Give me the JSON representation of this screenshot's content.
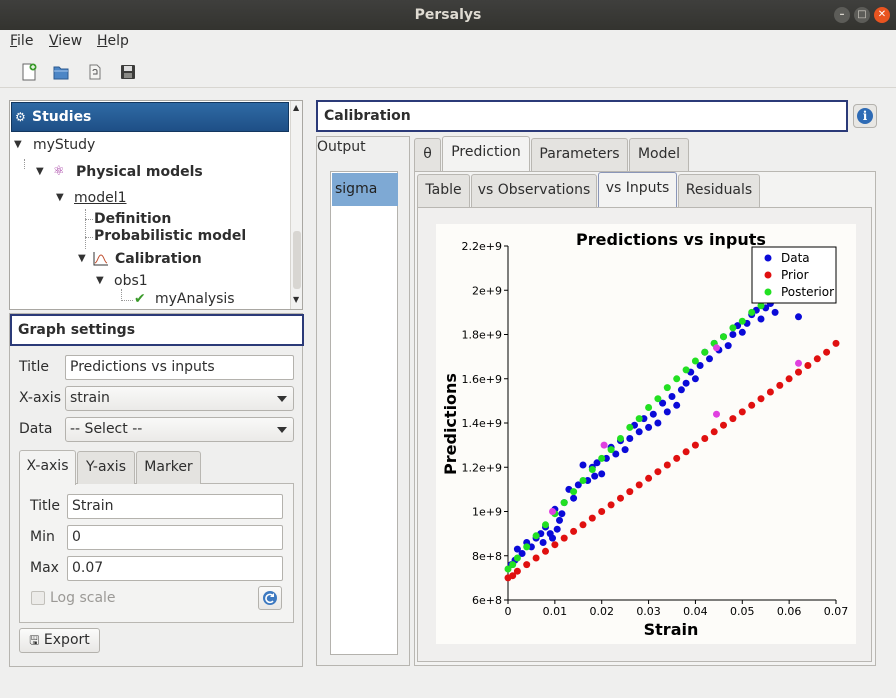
{
  "window": {
    "title": "Persalys",
    "controls": [
      "minimize-icon",
      "maximize-icon",
      "close-icon"
    ]
  },
  "menu": {
    "items": [
      {
        "mnemonic": "F",
        "rest": "ile"
      },
      {
        "mnemonic": "V",
        "rest": "iew"
      },
      {
        "mnemonic": "H",
        "rest": "elp"
      }
    ]
  },
  "toolbar": {
    "icons": [
      "new-study-icon",
      "open-study-icon",
      "import-python-icon",
      "save-icon"
    ]
  },
  "studies": {
    "header": "Studies",
    "tree": [
      {
        "label": "myStudy"
      },
      {
        "label": "Physical models",
        "icon": "physical-models-icon"
      },
      {
        "label": "model1"
      },
      {
        "label": "Definition"
      },
      {
        "label": "Probabilistic model"
      },
      {
        "label": "Calibration",
        "icon": "calibration-icon"
      },
      {
        "label": "obs1"
      },
      {
        "label": "myAnalysis",
        "icon": "checkmark-icon"
      }
    ]
  },
  "graph_settings": {
    "header": "Graph settings",
    "title_label": "Title",
    "title_value": "Predictions vs inputs",
    "xaxis_label": "X-axis",
    "xaxis_value": "strain",
    "data_label": "Data",
    "data_value": "-- Select --",
    "tabs": [
      "X-axis",
      "Y-axis",
      "Marker"
    ],
    "axis_title_label": "Title",
    "axis_title_value": "Strain",
    "min_label": "Min",
    "min_value": "0",
    "max_label": "Max",
    "max_value": "0.07",
    "log_scale": "Log scale",
    "export": "Export"
  },
  "calibration": {
    "header": "Calibration",
    "output_label": "Output",
    "outputs": [
      "sigma"
    ],
    "tabs": [
      "θ",
      "Prediction",
      "Parameters",
      "Model"
    ],
    "subtabs": [
      "Table",
      "vs Observations",
      "vs Inputs",
      "Residuals"
    ]
  },
  "chart_data": {
    "type": "scatter",
    "title": "Predictions vs inputs",
    "xlabel": "Strain",
    "ylabel": "Predictions",
    "xlim": [
      0,
      0.07
    ],
    "ylim": [
      600000000,
      2200000000
    ],
    "xticks": [
      "0",
      "0.01",
      "0.02",
      "0.03",
      "0.04",
      "0.05",
      "0.06",
      "0.07"
    ],
    "yticks": [
      "6e+8",
      "8e+8",
      "1e+9",
      "1.2e+9",
      "1.4e+9",
      "1.6e+9",
      "1.8e+9",
      "2e+9",
      "2.2e+9"
    ],
    "legend_position": "top-right",
    "series": [
      {
        "name": "Data",
        "color": "#0a0ad8",
        "points": [
          [
            0.0007,
            760000000.0
          ],
          [
            0.0015,
            780000000.0
          ],
          [
            0.002,
            830000000.0
          ],
          [
            0.003,
            810000000.0
          ],
          [
            0.004,
            860000000.0
          ],
          [
            0.005,
            840000000.0
          ],
          [
            0.006,
            880000000.0
          ],
          [
            0.007,
            900000000.0
          ],
          [
            0.0075,
            860000000.0
          ],
          [
            0.008,
            930000000.0
          ],
          [
            0.009,
            900000000.0
          ],
          [
            0.0095,
            880000000.0
          ],
          [
            0.01,
            1010000000.0
          ],
          [
            0.0105,
            920000000.0
          ],
          [
            0.011,
            960000000.0
          ],
          [
            0.0115,
            990000000.0
          ],
          [
            0.012,
            1040000000.0
          ],
          [
            0.013,
            1100000000.0
          ],
          [
            0.014,
            1060000000.0
          ],
          [
            0.015,
            1120000000.0
          ],
          [
            0.016,
            1210000000.0
          ],
          [
            0.017,
            1140000000.0
          ],
          [
            0.018,
            1200000000.0
          ],
          [
            0.0185,
            1160000000.0
          ],
          [
            0.019,
            1220000000.0
          ],
          [
            0.02,
            1170000000.0
          ],
          [
            0.021,
            1240000000.0
          ],
          [
            0.022,
            1290000000.0
          ],
          [
            0.023,
            1260000000.0
          ],
          [
            0.024,
            1320000000.0
          ],
          [
            0.025,
            1280000000.0
          ],
          [
            0.026,
            1330000000.0
          ],
          [
            0.027,
            1390000000.0
          ],
          [
            0.028,
            1360000000.0
          ],
          [
            0.029,
            1420000000.0
          ],
          [
            0.03,
            1380000000.0
          ],
          [
            0.031,
            1440000000.0
          ],
          [
            0.032,
            1400000000.0
          ],
          [
            0.033,
            1490000000.0
          ],
          [
            0.034,
            1450000000.0
          ],
          [
            0.035,
            1520000000.0
          ],
          [
            0.036,
            1480000000.0
          ],
          [
            0.037,
            1550000000.0
          ],
          [
            0.038,
            1580000000.0
          ],
          [
            0.039,
            1630000000.0
          ],
          [
            0.04,
            1600000000.0
          ],
          [
            0.041,
            1660000000.0
          ],
          [
            0.042,
            1720000000.0
          ],
          [
            0.043,
            1690000000.0
          ],
          [
            0.044,
            1760000000.0
          ],
          [
            0.045,
            1730000000.0
          ],
          [
            0.046,
            1790000000.0
          ],
          [
            0.047,
            1750000000.0
          ],
          [
            0.048,
            1800000000.0
          ],
          [
            0.049,
            1840000000.0
          ],
          [
            0.05,
            1810000000.0
          ],
          [
            0.051,
            1850000000.0
          ],
          [
            0.052,
            1890000000.0
          ],
          [
            0.053,
            1910000000.0
          ],
          [
            0.054,
            1870000000.0
          ],
          [
            0.055,
            1920000000.0
          ],
          [
            0.056,
            1940000000.0
          ],
          [
            0.057,
            1900000000.0
          ],
          [
            0.062,
            1880000000.0
          ]
        ]
      },
      {
        "name": "Prior",
        "color": "#e01010",
        "points": [
          [
            0,
            700000000.0
          ],
          [
            0.001,
            710000000.0
          ],
          [
            0.002,
            730000000.0
          ],
          [
            0.004,
            760000000.0
          ],
          [
            0.006,
            790000000.0
          ],
          [
            0.008,
            820000000.0
          ],
          [
            0.01,
            850000000.0
          ],
          [
            0.012,
            880000000.0
          ],
          [
            0.014,
            910000000.0
          ],
          [
            0.016,
            940000000.0
          ],
          [
            0.018,
            970000000.0
          ],
          [
            0.02,
            1000000000.0
          ],
          [
            0.022,
            1030000000.0
          ],
          [
            0.024,
            1060000000.0
          ],
          [
            0.026,
            1090000000.0
          ],
          [
            0.028,
            1120000000.0
          ],
          [
            0.03,
            1150000000.0
          ],
          [
            0.032,
            1180000000.0
          ],
          [
            0.034,
            1210000000.0
          ],
          [
            0.036,
            1240000000.0
          ],
          [
            0.038,
            1270000000.0
          ],
          [
            0.04,
            1300000000.0
          ],
          [
            0.042,
            1330000000.0
          ],
          [
            0.044,
            1360000000.0
          ],
          [
            0.046,
            1390000000.0
          ],
          [
            0.048,
            1420000000.0
          ],
          [
            0.05,
            1450000000.0
          ],
          [
            0.052,
            1480000000.0
          ],
          [
            0.054,
            1510000000.0
          ],
          [
            0.056,
            1540000000.0
          ],
          [
            0.058,
            1570000000.0
          ],
          [
            0.06,
            1600000000.0
          ],
          [
            0.062,
            1630000000.0
          ],
          [
            0.064,
            1660000000.0
          ],
          [
            0.066,
            1690000000.0
          ],
          [
            0.068,
            1720000000.0
          ],
          [
            0.07,
            1760000000.0
          ]
        ]
      },
      {
        "name": "Posterior",
        "color": "#22e022",
        "points": [
          [
            0,
            740000000.0
          ],
          [
            0.001,
            760000000.0
          ],
          [
            0.002,
            790000000.0
          ],
          [
            0.004,
            840000000.0
          ],
          [
            0.006,
            890000000.0
          ],
          [
            0.008,
            940000000.0
          ],
          [
            0.01,
            990000000.0
          ],
          [
            0.012,
            1040000000.0
          ],
          [
            0.014,
            1090000000.0
          ],
          [
            0.016,
            1140000000.0
          ],
          [
            0.018,
            1190000000.0
          ],
          [
            0.02,
            1240000000.0
          ],
          [
            0.022,
            1280000000.0
          ],
          [
            0.024,
            1330000000.0
          ],
          [
            0.026,
            1380000000.0
          ],
          [
            0.028,
            1420000000.0
          ],
          [
            0.03,
            1470000000.0
          ],
          [
            0.032,
            1510000000.0
          ],
          [
            0.034,
            1560000000.0
          ],
          [
            0.036,
            1600000000.0
          ],
          [
            0.038,
            1640000000.0
          ],
          [
            0.04,
            1680000000.0
          ],
          [
            0.042,
            1720000000.0
          ],
          [
            0.044,
            1760000000.0
          ],
          [
            0.046,
            1790000000.0
          ],
          [
            0.048,
            1830000000.0
          ],
          [
            0.05,
            1860000000.0
          ],
          [
            0.052,
            1900000000.0
          ],
          [
            0.054,
            1930000000.0
          ],
          [
            0.056,
            1960000000.0
          ]
        ]
      },
      {
        "color": "#e040e0",
        "points": [
          [
            0.0095,
            1000000000.0
          ],
          [
            0.0205,
            1300000000.0
          ],
          [
            0.0445,
            1440000000.0
          ],
          [
            0.0445,
            1740000000.0
          ],
          [
            0.062,
            1670000000.0
          ]
        ]
      }
    ]
  }
}
